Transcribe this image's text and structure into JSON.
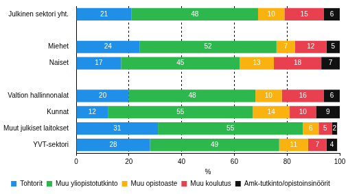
{
  "chart_data": {
    "type": "bar",
    "orientation": "horizontal",
    "stacked": true,
    "data_labels": true,
    "grid": true,
    "legend": "bottom",
    "xlabel": "%",
    "categories": [
      "Julkinen sektori yht.",
      null,
      "Miehet",
      "Naiset",
      null,
      "Valtion hallinnonalat",
      "Kunnat",
      "Muut julkiset laitokset",
      "YVT-sektori"
    ],
    "xlim": [
      0,
      100
    ],
    "xticks": [
      0,
      20,
      40,
      60,
      80,
      100
    ],
    "series": [
      {
        "name": "Tohtorit",
        "color": "#1f8fe8",
        "values": [
          21,
          null,
          24,
          17,
          null,
          20,
          12,
          31,
          28
        ]
      },
      {
        "name": "Muu yliopistotutkinto",
        "color": "#2db84d",
        "values": [
          48,
          null,
          52,
          45,
          null,
          48,
          55,
          55,
          49
        ]
      },
      {
        "name": "Muu opistoaste",
        "color": "#f9b20f",
        "values": [
          10,
          null,
          7,
          13,
          null,
          10,
          14,
          6,
          11
        ]
      },
      {
        "name": "Muu koulutus",
        "color": "#e8404f",
        "values": [
          15,
          null,
          12,
          18,
          null,
          16,
          10,
          5,
          7
        ]
      },
      {
        "name": "Amk-tutkinto/opistoinsinöörit",
        "color": "#111111",
        "values": [
          6,
          null,
          5,
          7,
          null,
          6,
          9,
          2,
          4
        ]
      }
    ]
  }
}
